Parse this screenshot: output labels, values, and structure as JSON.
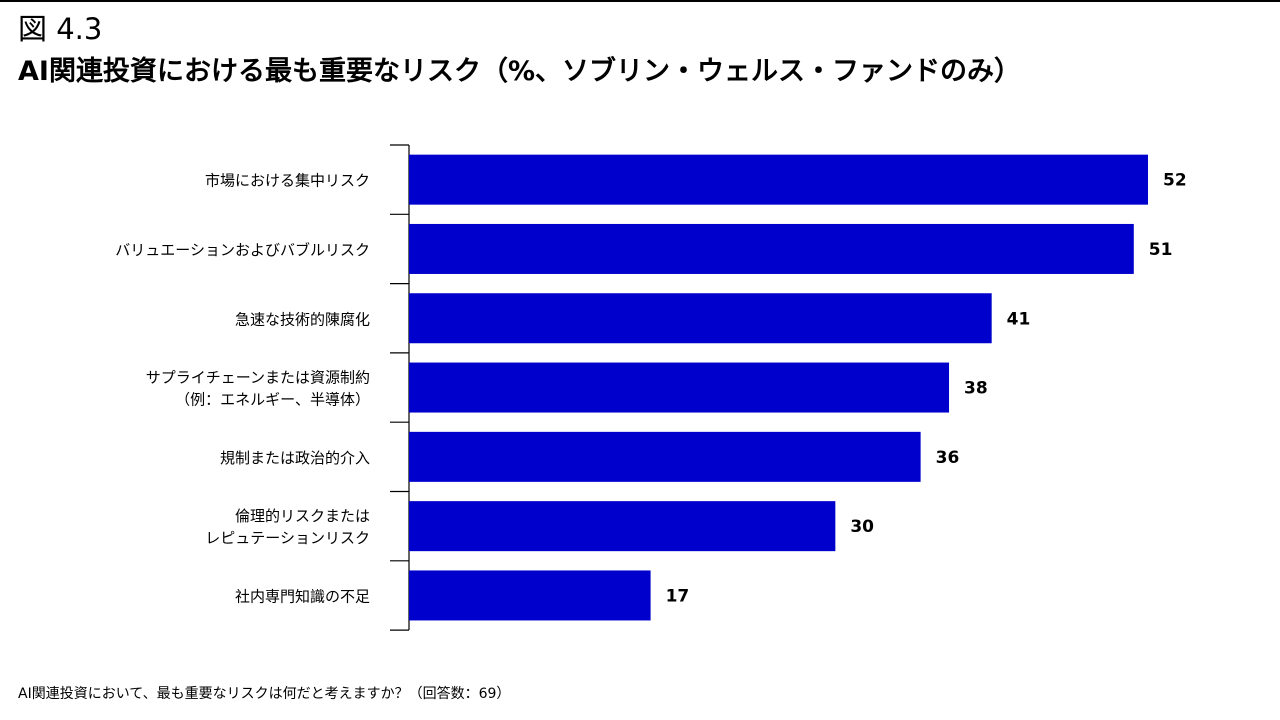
{
  "figure_label": "図 4.3",
  "title": "AI関連投資における最も重要なリスク（%、ソブリン・ウェルス・ファンドのみ）",
  "footnote": "AI関連投資において、最も重要なリスクは何だと考えますか？（回答数：69）",
  "colors": {
    "bar": "#0000CC",
    "axis": "#000000",
    "text": "#000000"
  },
  "chart_data": {
    "type": "bar",
    "orientation": "horizontal",
    "title": "AI関連投資における最も重要なリスク（%、ソブリン・ウェルス・ファンドのみ）",
    "categories": [
      [
        "市場における集中リスク"
      ],
      [
        "バリュエーションおよびバブルリスク"
      ],
      [
        "急速な技術的陳腐化"
      ],
      [
        "サプライチェーンまたは資源制約",
        "（例：エネルギー、半導体）"
      ],
      [
        "規制または政治的介入"
      ],
      [
        "倫理的リスクまたは",
        "レピュテーションリスク"
      ],
      [
        "社内専門知識の不足"
      ]
    ],
    "values": [
      52,
      51,
      41,
      38,
      36,
      30,
      17
    ],
    "xlim": [
      0,
      60
    ],
    "grid": false,
    "legend": "none",
    "data_labels": true
  }
}
